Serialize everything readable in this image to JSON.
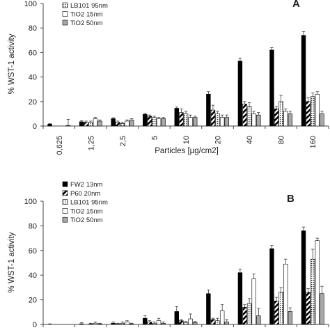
{
  "chart_data": [
    {
      "type": "bar",
      "panel_label": "A",
      "ylabel": "% WST-1 activity",
      "xlabel": "Particles  [µg/cm2]",
      "ylim": [
        0,
        100
      ],
      "yticks": [
        0,
        20,
        40,
        60,
        80,
        100
      ],
      "categories": [
        "0,625",
        "1,25",
        "2,5",
        "5",
        "10",
        "20",
        "40",
        "80",
        "160"
      ],
      "legend_visible": [
        "LB101 95nm",
        "TiO2 15nm",
        "TiO2 50nm"
      ],
      "series": [
        {
          "name": "FW2 13nm",
          "pattern": "solid-black",
          "values": [
            1.5,
            3.5,
            6,
            9.5,
            14.5,
            26,
            53,
            62,
            74
          ],
          "errors": [
            0.5,
            0.8,
            0.8,
            1,
            1,
            2,
            2.5,
            2,
            3
          ]
        },
        {
          "name": "P60 20nm",
          "pattern": "hatched",
          "values": [
            0,
            3,
            3,
            8,
            11,
            13,
            18,
            14,
            20
          ],
          "errors": [
            0,
            1,
            1,
            1,
            3,
            4,
            2,
            2,
            3
          ]
        },
        {
          "name": "LB101 95nm",
          "pattern": "dotted",
          "values": [
            0,
            3,
            2,
            7,
            10,
            10,
            16,
            20,
            24
          ],
          "errors": [
            0,
            1,
            1,
            1,
            2,
            2,
            3,
            5,
            3
          ]
        },
        {
          "name": "TiO2 15nm",
          "pattern": "white",
          "values": [
            0,
            6,
            4,
            6,
            7,
            7,
            10,
            12,
            26
          ],
          "errors": [
            0,
            1,
            1,
            1,
            2,
            2,
            2,
            2,
            2
          ]
        },
        {
          "name": "TiO2 50nm",
          "pattern": "grey",
          "values": [
            0.5,
            4,
            5,
            6,
            7,
            7,
            9,
            10,
            10
          ],
          "errors": [
            5,
            1,
            1,
            1,
            1,
            2,
            2,
            2,
            2
          ]
        }
      ]
    },
    {
      "type": "bar",
      "panel_label": "B",
      "ylabel": "% WST-1 activity",
      "ylim": [
        0,
        100
      ],
      "yticks": [
        0,
        20,
        40,
        60,
        80,
        100
      ],
      "legend_visible": [
        "FW2 13nm",
        "P60  20nm",
        "LB101 95nm",
        "TiO2 15nm",
        "TiO2 50nm"
      ],
      "series": [
        {
          "name": "FW2 13nm",
          "pattern": "solid-black",
          "values": [
            0,
            0.5,
            1,
            5,
            10.5,
            25,
            42,
            61.5,
            76
          ],
          "errors": [
            0.5,
            1,
            1,
            2,
            4,
            3,
            3,
            2.5,
            3
          ]
        },
        {
          "name": "P60  20nm",
          "pattern": "hatched",
          "values": [
            0,
            0,
            0.5,
            2,
            3,
            4,
            14,
            19,
            26
          ],
          "errors": [
            0,
            0,
            0.5,
            1,
            1,
            1,
            2,
            3,
            3
          ]
        },
        {
          "name": "LB101 95nm",
          "pattern": "dotted",
          "values": [
            0,
            0.5,
            1,
            1,
            1.5,
            3,
            17,
            26,
            53
          ],
          "errors": [
            0,
            0.5,
            1,
            1,
            1,
            2,
            4,
            4,
            8
          ]
        },
        {
          "name": "TiO2 15nm",
          "pattern": "white",
          "values": [
            0,
            1,
            2,
            3,
            4.5,
            11,
            37,
            49,
            68
          ],
          "errors": [
            0,
            1,
            1,
            2,
            4,
            5,
            4,
            4,
            2
          ]
        },
        {
          "name": "TiO2 50nm",
          "pattern": "grey",
          "values": [
            0,
            0.5,
            0.5,
            1,
            1.5,
            2,
            7,
            10.5,
            25
          ],
          "errors": [
            0,
            0.5,
            0.5,
            1,
            1,
            2,
            6,
            3,
            6
          ]
        }
      ]
    }
  ]
}
